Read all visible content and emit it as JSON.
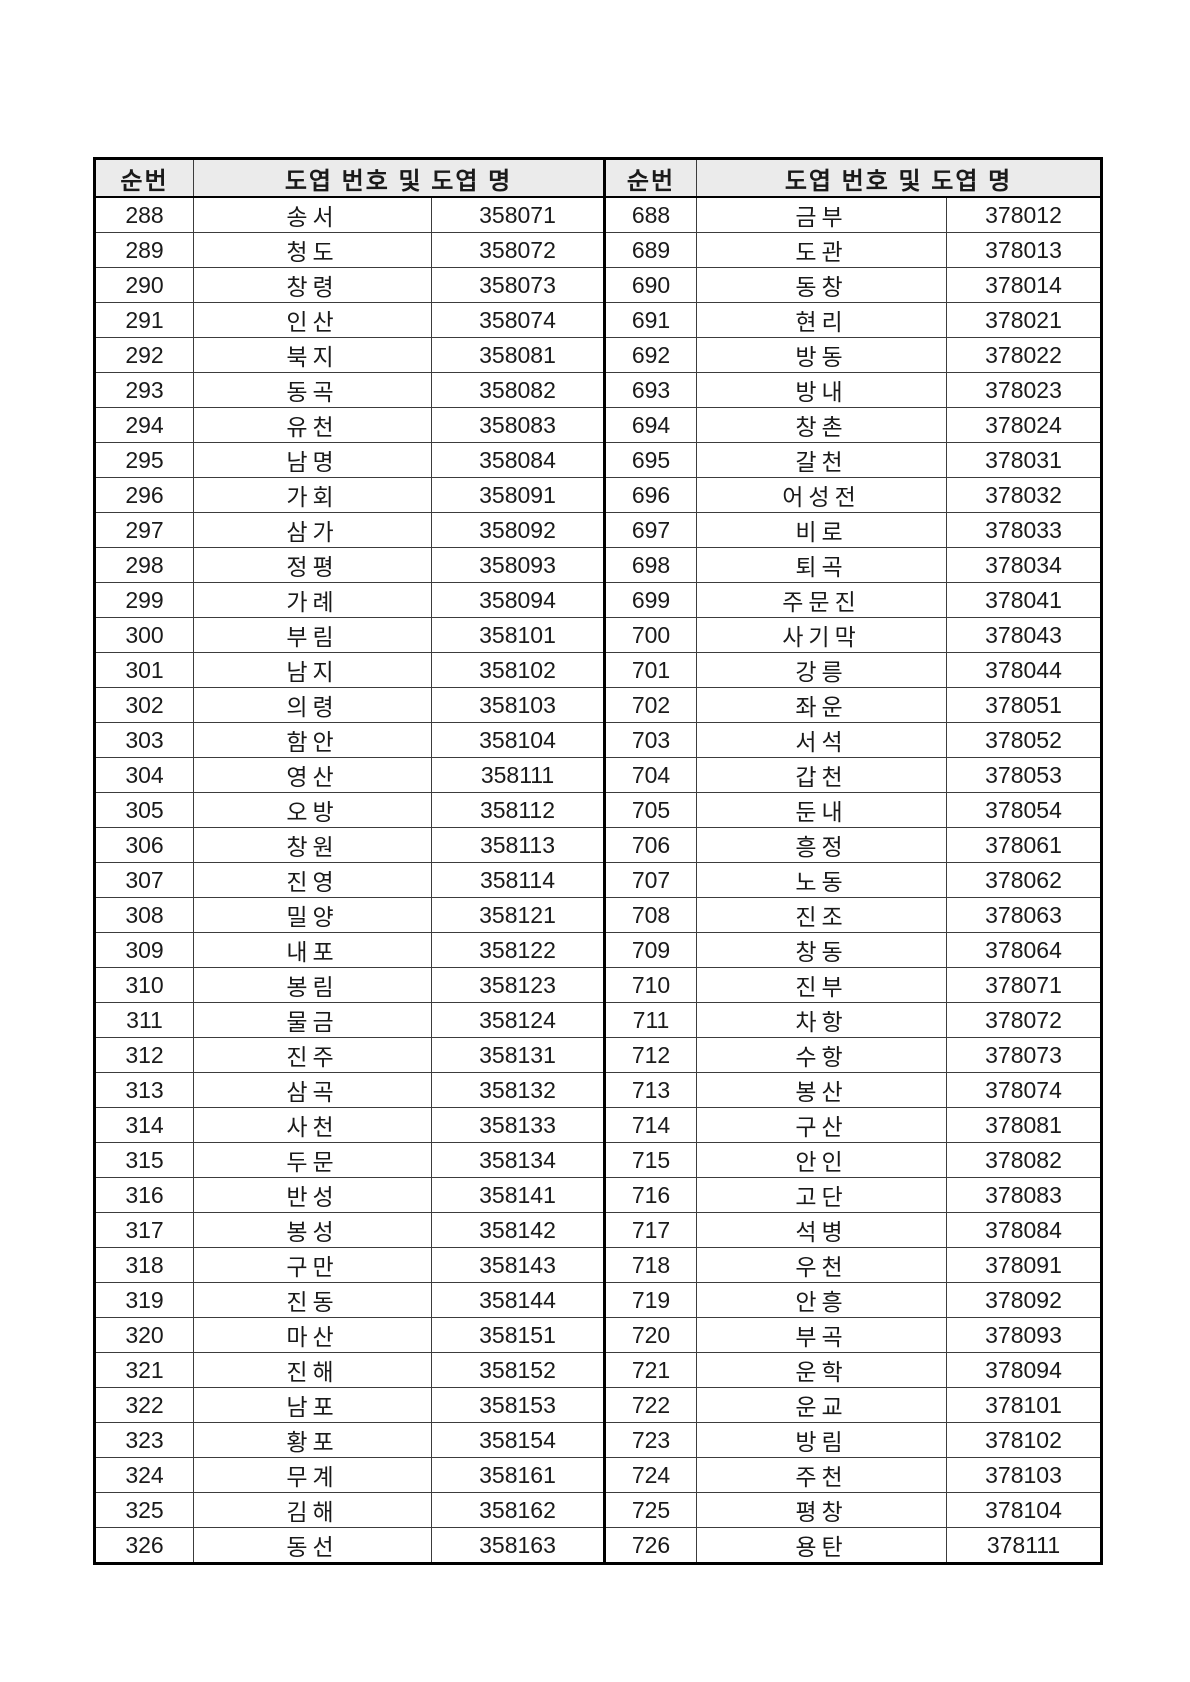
{
  "page": {
    "background": "#ffffff"
  },
  "table": {
    "header": [
      "순번",
      "도엽 번호 및 도엽 명",
      "순번",
      "도엽 번호 및 도엽 명"
    ],
    "header_bg": "#ebebeb",
    "border_color": "#000000",
    "rows": [
      [
        "288",
        "송서",
        "358071",
        "688",
        "금부",
        "378012"
      ],
      [
        "289",
        "청도",
        "358072",
        "689",
        "도관",
        "378013"
      ],
      [
        "290",
        "창령",
        "358073",
        "690",
        "동창",
        "378014"
      ],
      [
        "291",
        "인산",
        "358074",
        "691",
        "현리",
        "378021"
      ],
      [
        "292",
        "북지",
        "358081",
        "692",
        "방동",
        "378022"
      ],
      [
        "293",
        "동곡",
        "358082",
        "693",
        "방내",
        "378023"
      ],
      [
        "294",
        "유천",
        "358083",
        "694",
        "창촌",
        "378024"
      ],
      [
        "295",
        "남명",
        "358084",
        "695",
        "갈천",
        "378031"
      ],
      [
        "296",
        "가회",
        "358091",
        "696",
        "어성전",
        "378032"
      ],
      [
        "297",
        "삼가",
        "358092",
        "697",
        "비로",
        "378033"
      ],
      [
        "298",
        "정평",
        "358093",
        "698",
        "퇴곡",
        "378034"
      ],
      [
        "299",
        "가례",
        "358094",
        "699",
        "주문진",
        "378041"
      ],
      [
        "300",
        "부림",
        "358101",
        "700",
        "사기막",
        "378043"
      ],
      [
        "301",
        "남지",
        "358102",
        "701",
        "강릉",
        "378044"
      ],
      [
        "302",
        "의령",
        "358103",
        "702",
        "좌운",
        "378051"
      ],
      [
        "303",
        "함안",
        "358104",
        "703",
        "서석",
        "378052"
      ],
      [
        "304",
        "영산",
        "358111",
        "704",
        "갑천",
        "378053"
      ],
      [
        "305",
        "오방",
        "358112",
        "705",
        "둔내",
        "378054"
      ],
      [
        "306",
        "창원",
        "358113",
        "706",
        "흥정",
        "378061"
      ],
      [
        "307",
        "진영",
        "358114",
        "707",
        "노동",
        "378062"
      ],
      [
        "308",
        "밀양",
        "358121",
        "708",
        "진조",
        "378063"
      ],
      [
        "309",
        "내포",
        "358122",
        "709",
        "창동",
        "378064"
      ],
      [
        "310",
        "봉림",
        "358123",
        "710",
        "진부",
        "378071"
      ],
      [
        "311",
        "물금",
        "358124",
        "711",
        "차항",
        "378072"
      ],
      [
        "312",
        "진주",
        "358131",
        "712",
        "수항",
        "378073"
      ],
      [
        "313",
        "삼곡",
        "358132",
        "713",
        "봉산",
        "378074"
      ],
      [
        "314",
        "사천",
        "358133",
        "714",
        "구산",
        "378081"
      ],
      [
        "315",
        "두문",
        "358134",
        "715",
        "안인",
        "378082"
      ],
      [
        "316",
        "반성",
        "358141",
        "716",
        "고단",
        "378083"
      ],
      [
        "317",
        "봉성",
        "358142",
        "717",
        "석병",
        "378084"
      ],
      [
        "318",
        "구만",
        "358143",
        "718",
        "우천",
        "378091"
      ],
      [
        "319",
        "진동",
        "358144",
        "719",
        "안흥",
        "378092"
      ],
      [
        "320",
        "마산",
        "358151",
        "720",
        "부곡",
        "378093"
      ],
      [
        "321",
        "진해",
        "358152",
        "721",
        "운학",
        "378094"
      ],
      [
        "322",
        "남포",
        "358153",
        "722",
        "운교",
        "378101"
      ],
      [
        "323",
        "황포",
        "358154",
        "723",
        "방림",
        "378102"
      ],
      [
        "324",
        "무계",
        "358161",
        "724",
        "주천",
        "378103"
      ],
      [
        "325",
        "김해",
        "358162",
        "725",
        "평창",
        "378104"
      ],
      [
        "326",
        "동선",
        "358163",
        "726",
        "용탄",
        "378111"
      ]
    ]
  }
}
